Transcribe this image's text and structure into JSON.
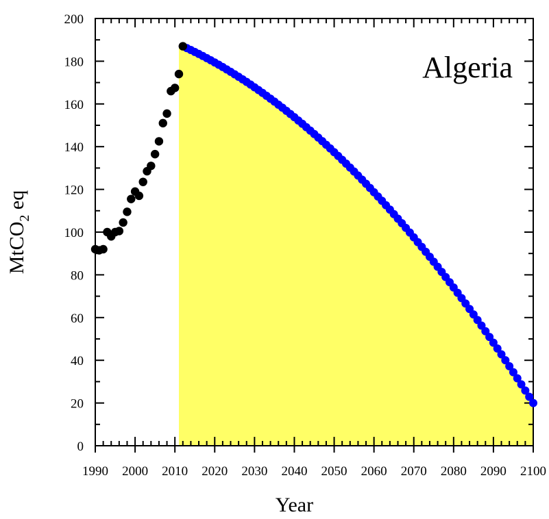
{
  "chart_data": {
    "type": "scatter",
    "title": "Algeria",
    "xlabel": "Year",
    "ylabel_main": "MtCO",
    "ylabel_sub": "2",
    "ylabel_tail": " eq",
    "xlim": [
      1990,
      2100
    ],
    "ylim": [
      0,
      200
    ],
    "xticks_major": [
      1990,
      2000,
      2010,
      2020,
      2030,
      2040,
      2050,
      2060,
      2070,
      2080,
      2090,
      2100
    ],
    "xticks_minor_step": 2,
    "yticks_major": [
      0,
      20,
      40,
      60,
      80,
      100,
      120,
      140,
      160,
      180,
      200
    ],
    "yticks_minor_step": 10,
    "grid": false,
    "series": [
      {
        "kind": "historical",
        "color": "#000000",
        "points": [
          [
            1990,
            92
          ],
          [
            1991,
            91.5
          ],
          [
            1992,
            92
          ],
          [
            1993,
            100
          ],
          [
            1994,
            98
          ],
          [
            1995,
            100
          ],
          [
            1996,
            100.5
          ],
          [
            1997,
            104.5
          ],
          [
            1998,
            109.5
          ],
          [
            1999,
            115.5
          ],
          [
            2000,
            119
          ],
          [
            2001,
            117
          ],
          [
            2002,
            123.5
          ],
          [
            2003,
            128.5
          ],
          [
            2004,
            131
          ],
          [
            2005,
            136.5
          ],
          [
            2006,
            142.5
          ],
          [
            2007,
            151
          ],
          [
            2008,
            155.5
          ],
          [
            2009,
            166
          ],
          [
            2010,
            167.5
          ],
          [
            2011,
            174
          ],
          [
            2012,
            187
          ]
        ]
      },
      {
        "kind": "projection",
        "color": "#0000ff",
        "start": [
          2012,
          187
        ],
        "end": [
          2100,
          20
        ]
      }
    ],
    "fill": {
      "color": "#ffff66",
      "x_from": 2011
    }
  }
}
